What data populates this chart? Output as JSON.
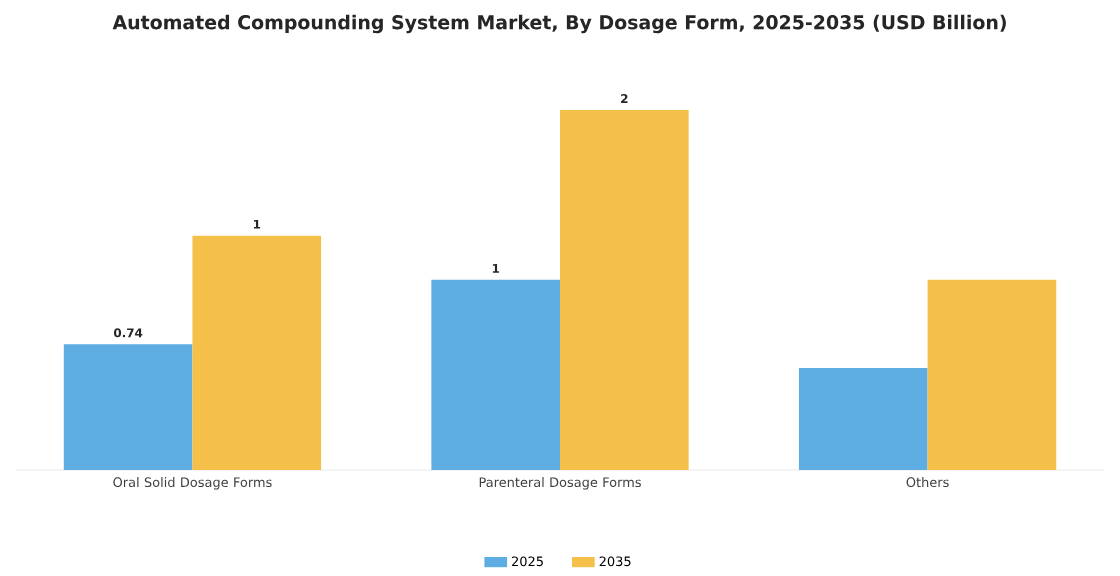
{
  "chart_data": {
    "type": "bar",
    "title": "Automated Compounding System Market, By Dosage Form, 2025-2035 (USD Billion)",
    "categories": [
      "Oral Solid Dosage Forms",
      "Parenteral Dosage Forms",
      "Others"
    ],
    "series": [
      {
        "name": "2025",
        "color": "#5dade2",
        "values": [
          0.74,
          1.12,
          0.6
        ],
        "value_labels": [
          "0.74",
          "1",
          null
        ]
      },
      {
        "name": "2035",
        "color": "#f5c04a",
        "values": [
          1.38,
          2.12,
          1.12
        ],
        "value_labels": [
          "1",
          "2",
          null
        ]
      }
    ],
    "legend": "bottom"
  }
}
